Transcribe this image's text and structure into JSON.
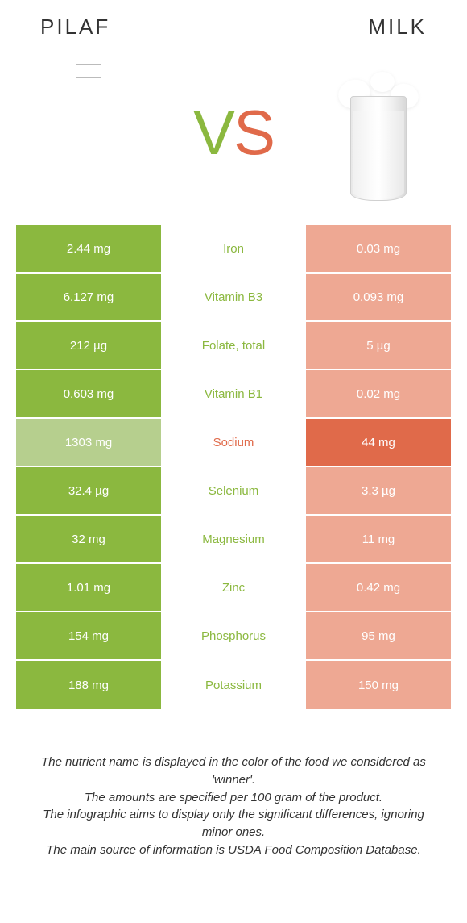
{
  "header": {
    "left_title": "PILAF",
    "right_title": "MILK",
    "vs_v": "V",
    "vs_s": "S"
  },
  "colors": {
    "left_winner": "#8bb83f",
    "left_dim": "#b6cf8e",
    "right_winner": "#e06a4a",
    "right_dim": "#eea893",
    "text_white": "#ffffff",
    "background": "#ffffff"
  },
  "rows": [
    {
      "left": "2.44 mg",
      "label": "Iron",
      "right": "0.03 mg",
      "winner": "left"
    },
    {
      "left": "6.127 mg",
      "label": "Vitamin B3",
      "right": "0.093 mg",
      "winner": "left"
    },
    {
      "left": "212 µg",
      "label": "Folate, total",
      "right": "5 µg",
      "winner": "left"
    },
    {
      "left": "0.603 mg",
      "label": "Vitamin B1",
      "right": "0.02 mg",
      "winner": "left"
    },
    {
      "left": "1303 mg",
      "label": "Sodium",
      "right": "44 mg",
      "winner": "right"
    },
    {
      "left": "32.4 µg",
      "label": "Selenium",
      "right": "3.3 µg",
      "winner": "left"
    },
    {
      "left": "32 mg",
      "label": "Magnesium",
      "right": "11 mg",
      "winner": "left"
    },
    {
      "left": "1.01 mg",
      "label": "Zinc",
      "right": "0.42 mg",
      "winner": "left"
    },
    {
      "left": "154 mg",
      "label": "Phosphorus",
      "right": "95 mg",
      "winner": "left"
    },
    {
      "left": "188 mg",
      "label": "Potassium",
      "right": "150 mg",
      "winner": "left"
    }
  ],
  "footnotes": {
    "line1": "The nutrient name is displayed in the color of the food we considered as 'winner'.",
    "line2": "The amounts are specified per 100 gram of the product.",
    "line3": "The infographic aims to display only the significant differences, ignoring minor ones.",
    "line4": "The main source of information is USDA Food Composition Database."
  }
}
